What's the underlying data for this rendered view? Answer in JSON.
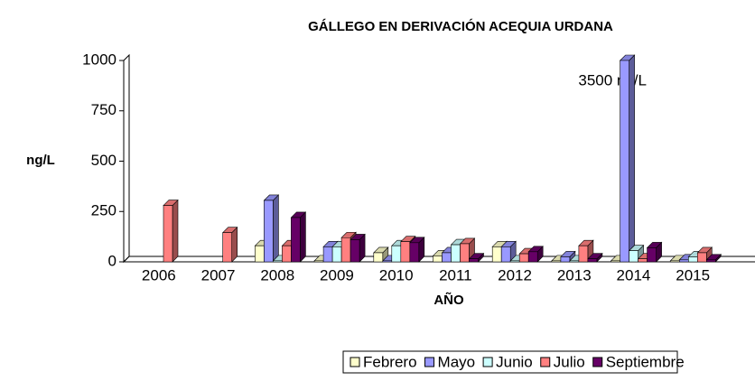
{
  "chart_data": {
    "type": "bar3d",
    "title": "GÁLLEGO EN DERIVACIÓN ACEQUIA URDANA",
    "x_label": "AÑO",
    "y_label": "ng/L",
    "annotation": "3500 ng/L",
    "categories": [
      "2006",
      "2007",
      "2008",
      "2009",
      "2010",
      "2011",
      "2012",
      "2013",
      "2014",
      "2015"
    ],
    "series": [
      {
        "name": "Febrero",
        "color": "#ffffcc",
        "values": [
          null,
          null,
          80,
          5,
          45,
          30,
          75,
          5,
          5,
          5
        ]
      },
      {
        "name": "Mayo",
        "color": "#9999ff",
        "values": [
          null,
          null,
          305,
          75,
          5,
          45,
          75,
          25,
          3500,
          10
        ]
      },
      {
        "name": "Junio",
        "color": "#ccffff",
        "values": [
          null,
          null,
          5,
          75,
          80,
          85,
          5,
          5,
          55,
          25
        ]
      },
      {
        "name": "Julio",
        "color": "#ff8080",
        "values": [
          280,
          145,
          80,
          120,
          100,
          90,
          40,
          80,
          15,
          45
        ]
      },
      {
        "name": "Septiembre",
        "color": "#660066",
        "values": [
          null,
          null,
          220,
          110,
          95,
          15,
          50,
          15,
          70,
          10
        ]
      }
    ],
    "ylim": [
      0,
      1000
    ],
    "yticks": [
      0,
      250,
      500,
      750,
      1000
    ],
    "legend": "bottom"
  }
}
